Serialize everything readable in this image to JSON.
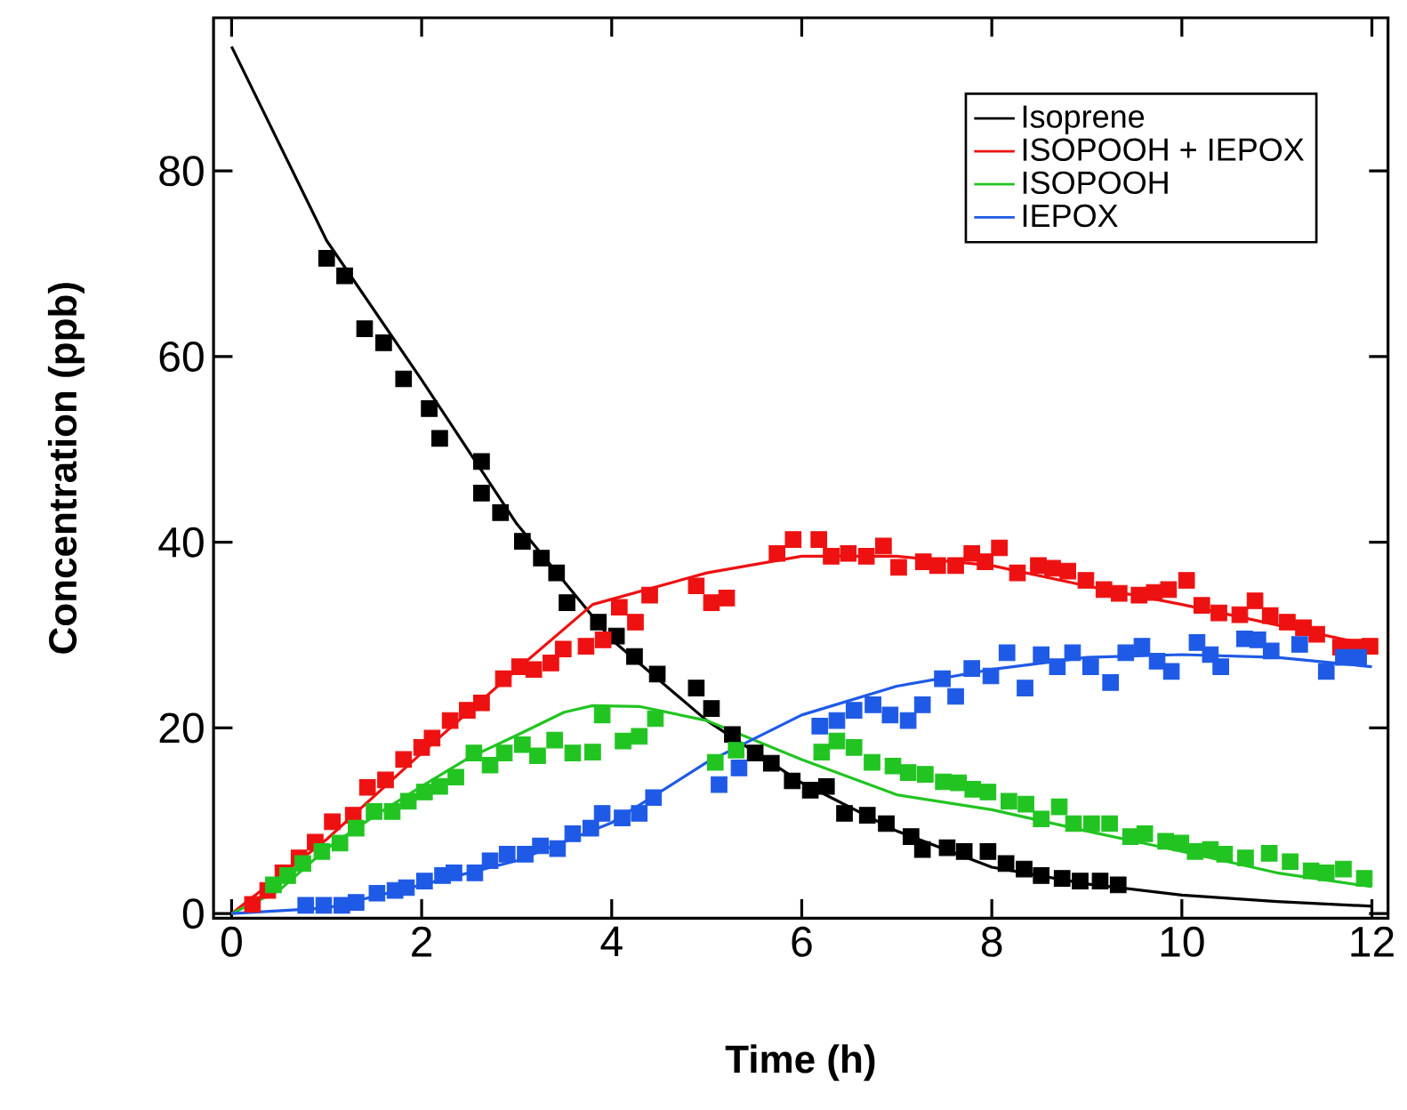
{
  "chart_data": {
    "type": "scatter",
    "xlabel": "Time (h)",
    "ylabel": "Concentration (ppb)",
    "xlim": [
      -0.19,
      12.17
    ],
    "ylim": [
      -0.5,
      96.5
    ],
    "xticks": [
      0,
      2,
      4,
      6,
      8,
      10,
      12
    ],
    "yticks": [
      0,
      20,
      40,
      60,
      80
    ],
    "grid": false,
    "legend": "top right",
    "marker": "square",
    "series": [
      {
        "color": "#000000",
        "x": [
          1.0,
          1.19,
          1.4,
          1.6,
          1.81,
          2.08,
          2.19,
          2.63,
          2.63,
          2.83,
          3.06,
          3.26,
          3.42,
          3.53,
          3.86,
          4.05,
          4.24,
          4.48,
          4.89,
          5.05,
          5.27,
          5.51,
          5.68,
          5.9,
          6.09,
          6.26,
          6.45,
          6.69,
          6.89,
          7.15,
          7.27,
          7.53,
          7.71,
          7.96,
          8.15,
          8.34,
          8.52,
          8.74,
          8.93,
          9.14,
          9.33
        ],
        "values": [
          70.6,
          68.7,
          63,
          61.5,
          57.6,
          54.4,
          51.2,
          48.7,
          45.3,
          43.2,
          40.1,
          38.3,
          36.7,
          33.5,
          31.4,
          29.9,
          27.7,
          25.8,
          24.3,
          22.1,
          19.3,
          17.3,
          16.2,
          14.3,
          13.3,
          13.7,
          10.8,
          10.6,
          9.7,
          8.3,
          6.9,
          7.1,
          6.7,
          6.7,
          5.4,
          4.8,
          4.1,
          3.8,
          3.5,
          3.5,
          3.1
        ]
      },
      {
        "color": "#ee1111",
        "x": [
          0.22,
          0.38,
          0.54,
          0.71,
          0.88,
          1.06,
          1.28,
          1.43,
          1.62,
          1.81,
          2.0,
          2.11,
          2.3,
          2.48,
          2.63,
          2.86,
          3.03,
          3.18,
          3.36,
          3.49,
          3.73,
          3.91,
          4.08,
          4.25,
          4.4,
          4.89,
          5.05,
          5.21,
          5.74,
          5.91,
          6.18,
          6.31,
          6.49,
          6.68,
          6.86,
          7.02,
          7.28,
          7.43,
          7.62,
          7.79,
          7.93,
          8.08,
          8.27,
          8.49,
          8.64,
          8.8,
          8.99,
          9.18,
          9.34,
          9.55,
          9.71,
          9.86,
          10.05,
          10.21,
          10.39,
          10.61,
          10.77,
          10.93,
          11.11,
          11.28,
          11.42,
          11.67,
          11.83,
          11.98
        ],
        "values": [
          1.0,
          2.5,
          4.4,
          6.0,
          7.7,
          9.9,
          10.6,
          13.6,
          14.4,
          16.6,
          17.9,
          18.9,
          20.8,
          21.9,
          22.7,
          25.3,
          26.6,
          26.3,
          27.0,
          28.5,
          28.8,
          29.5,
          33.0,
          31.4,
          34.3,
          35.3,
          33.5,
          34.0,
          38.8,
          40.3,
          40.3,
          38.5,
          38.8,
          38.5,
          39.6,
          37.3,
          37.9,
          37.5,
          37.5,
          38.8,
          37.9,
          39.4,
          36.7,
          37.5,
          37.2,
          36.9,
          35.9,
          34.9,
          34.5,
          34.3,
          34.6,
          34.9,
          35.9,
          33.2,
          32.4,
          32.2,
          33.7,
          32.1,
          31.4,
          30.8,
          30.1,
          28.7,
          28.7,
          28.8
        ]
      },
      {
        "color": "#22c422",
        "x": [
          0.44,
          0.59,
          0.75,
          0.95,
          1.14,
          1.31,
          1.5,
          1.69,
          1.86,
          2.03,
          2.19,
          2.36,
          2.55,
          2.72,
          2.87,
          3.06,
          3.22,
          3.4,
          3.59,
          3.8,
          3.9,
          4.12,
          4.29,
          4.46,
          5.09,
          5.31,
          6.21,
          6.37,
          6.55,
          6.74,
          6.96,
          7.12,
          7.3,
          7.49,
          7.65,
          7.8,
          7.96,
          8.18,
          8.36,
          8.52,
          8.71,
          8.86,
          9.05,
          9.24,
          9.46,
          9.61,
          9.83,
          9.99,
          10.14,
          10.3,
          10.45,
          10.67,
          10.92,
          11.14,
          11.36,
          11.52,
          11.7,
          11.92
        ],
        "values": [
          3.1,
          4.1,
          5.4,
          6.7,
          7.6,
          9.2,
          11.0,
          11.0,
          12.1,
          13.1,
          13.7,
          14.7,
          17.3,
          16.0,
          17.3,
          18.2,
          17.0,
          18.7,
          17.3,
          17.4,
          21.4,
          18.6,
          19.1,
          21.0,
          16.3,
          17.6,
          17.4,
          18.6,
          17.9,
          16.3,
          15.9,
          15.2,
          15.0,
          14.2,
          14.1,
          13.4,
          13.1,
          12.1,
          11.8,
          10.2,
          11.5,
          9.7,
          9.7,
          9.7,
          8.3,
          8.6,
          7.8,
          7.6,
          6.7,
          6.9,
          6.4,
          6.0,
          6.5,
          5.6,
          4.6,
          4.4,
          4.8,
          3.8
        ]
      },
      {
        "color": "#1f5ae6",
        "x": [
          0.78,
          0.97,
          1.16,
          1.31,
          1.53,
          1.72,
          1.84,
          2.03,
          2.22,
          2.34,
          2.56,
          2.72,
          2.9,
          3.09,
          3.25,
          3.43,
          3.59,
          3.78,
          3.9,
          4.11,
          4.29,
          4.44,
          5.13,
          5.34,
          6.19,
          6.37,
          6.55,
          6.75,
          6.93,
          7.12,
          7.27,
          7.48,
          7.62,
          7.79,
          7.99,
          8.16,
          8.35,
          8.52,
          8.69,
          8.85,
          9.04,
          9.25,
          9.41,
          9.58,
          9.74,
          9.89,
          10.16,
          10.3,
          10.41,
          10.66,
          10.8,
          10.94,
          11.24,
          11.52,
          11.7,
          11.86
        ],
        "values": [
          0.9,
          0.9,
          0.9,
          1.2,
          2.2,
          2.5,
          2.8,
          3.5,
          4.1,
          4.4,
          4.4,
          5.7,
          6.4,
          6.4,
          7.3,
          7.0,
          8.6,
          9.2,
          10.8,
          10.3,
          10.8,
          12.5,
          13.9,
          15.7,
          20.2,
          20.8,
          21.9,
          22.5,
          21.4,
          20.8,
          22.5,
          25.3,
          23.4,
          26.4,
          25.6,
          28.1,
          24.3,
          27.9,
          26.6,
          28.1,
          26.6,
          24.9,
          28.1,
          28.8,
          27.2,
          26.1,
          29.2,
          27.9,
          26.6,
          29.6,
          29.5,
          28.3,
          29.0,
          26.1,
          27.6,
          27.6
        ]
      },
      {
        "type": "line",
        "name": "Isoprene",
        "color": "#000000",
        "marker": "none",
        "line_style": "solid",
        "x": [
          0,
          1,
          2,
          3,
          4,
          5,
          6,
          7,
          8,
          9,
          10,
          11,
          12
        ],
        "values": [
          93.4,
          72.5,
          57.5,
          42,
          29.5,
          20.8,
          14.1,
          8.9,
          5,
          3.2,
          2,
          1.3,
          0.8
        ]
      },
      {
        "type": "line",
        "name": "ISOPOOH + IEPOX",
        "color": "#ee1111",
        "marker": "none",
        "line_style": "solid",
        "x": [
          0,
          1,
          2,
          3,
          3.8,
          5,
          6,
          7,
          8,
          9,
          10,
          11,
          12
        ],
        "values": [
          0,
          8,
          17.3,
          26.3,
          33.3,
          36.7,
          38.5,
          38.5,
          37.5,
          35.3,
          33.3,
          31.1,
          28.9
        ]
      },
      {
        "type": "line",
        "name": "ISOPOOH",
        "color": "#22c422",
        "marker": "none",
        "line_style": "solid",
        "x": [
          0,
          0.5,
          1,
          1.5,
          2,
          2.5,
          3,
          3.5,
          3.8,
          4.3,
          5,
          6,
          7,
          8,
          9,
          10,
          11,
          12
        ],
        "values": [
          0,
          2.5,
          7,
          10.5,
          13.7,
          16.8,
          19.2,
          21.7,
          22.4,
          22.3,
          20.8,
          16.6,
          12.8,
          11.2,
          8.9,
          6.7,
          4.4,
          2.9
        ]
      },
      {
        "type": "line",
        "name": "IEPOX",
        "color": "#1f5ae6",
        "marker": "none",
        "line_style": "solid",
        "x": [
          0,
          1,
          2,
          3,
          4,
          5,
          6,
          7,
          8,
          9,
          10,
          11,
          12
        ],
        "values": [
          0,
          0.6,
          3.1,
          5.7,
          9.8,
          16.3,
          21.4,
          24.5,
          26.3,
          27.6,
          27.9,
          27.6,
          26.6
        ]
      }
    ]
  }
}
